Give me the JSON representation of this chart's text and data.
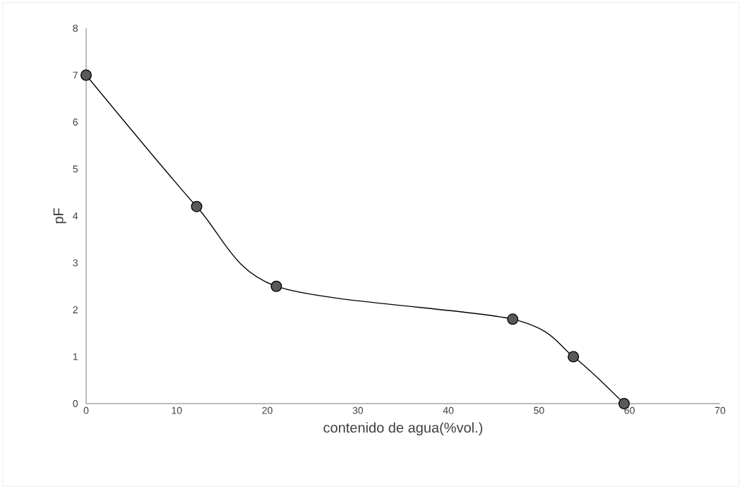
{
  "chart_data": {
    "type": "line",
    "xlabel": "contenido de agua(%vol.)",
    "ylabel": "pF",
    "x": [
      0,
      12.2,
      21,
      47.1,
      53.8,
      59.4
    ],
    "series": [
      {
        "color": "#000000",
        "values": [
          7,
          4.2,
          2.5,
          1.8,
          1,
          0
        ]
      }
    ],
    "xlim": [
      0,
      70
    ],
    "ylim": [
      0,
      8
    ],
    "xticks": [
      0,
      10,
      20,
      30,
      40,
      50,
      60,
      70
    ],
    "yticks": [
      0,
      1,
      2,
      3,
      4,
      5,
      6,
      7,
      8
    ],
    "marker": "circle",
    "line_style": "solid"
  }
}
